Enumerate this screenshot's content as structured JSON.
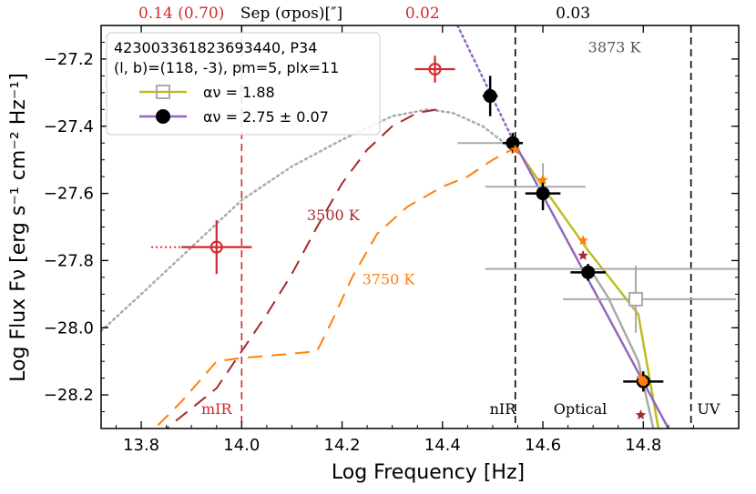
{
  "chart_data": {
    "type": "scatter",
    "xlabel": "Log Frequency [Hz]",
    "ylabel": "Log Flux Fν [erg s⁻¹ cm⁻² Hz⁻¹]",
    "xlim": [
      13.72,
      14.99
    ],
    "ylim": [
      -28.3,
      -27.1
    ],
    "x_ticks": [
      13.8,
      14.0,
      14.2,
      14.4,
      14.6,
      14.8
    ],
    "x_tick_labels": [
      "13.8",
      "14.0",
      "14.2",
      "14.4",
      "14.6",
      "14.8"
    ],
    "y_ticks": [
      -28.2,
      -28.0,
      -27.8,
      -27.6,
      -27.4,
      -27.2
    ],
    "y_tick_labels": [
      "−28.2",
      "−28.0",
      "−27.8",
      "−27.6",
      "−27.4",
      "−27.2"
    ],
    "top_axis": {
      "label": "Sep (σpos)[″]",
      "ticks": [
        {
          "x": 13.88,
          "label": "0.14 (0.70)",
          "color": "#d62728"
        },
        {
          "x": 14.36,
          "label": "0.02",
          "color": "#d62728"
        },
        {
          "x": 14.66,
          "label": "0.03",
          "color": "#000000"
        }
      ]
    },
    "legend": {
      "title_line1": "423003361823693440, P34",
      "title_line2": "(l, b)=(118, -3), pm=5, plx=11",
      "entries": [
        {
          "label": "αν = 1.88",
          "color": "#bcbd22",
          "marker_color": "#aaaaaa"
        },
        {
          "label": "αν = 2.75 ± 0.07",
          "color": "#9467bd",
          "marker_color": "#000000"
        }
      ]
    },
    "region_lines": [
      {
        "x": 14.0,
        "color": "#d62728",
        "label": "mIR"
      },
      {
        "x": 14.545,
        "color": "#000000",
        "label": "nIR"
      },
      {
        "x": 14.895,
        "color": "#000000",
        "label": "UV"
      }
    ],
    "optical_label": "Optical",
    "temperature_labels": [
      {
        "text": "3500 K",
        "x": 14.13,
        "y": -27.68,
        "color": "#a52a2a"
      },
      {
        "text": "3750 K",
        "x": 14.24,
        "y": -27.87,
        "color": "#ff7f0e"
      },
      {
        "text": "3873 K",
        "x": 14.69,
        "y": -27.18,
        "color": "#555555"
      }
    ],
    "series": [
      {
        "name": "black points",
        "points": [
          {
            "x": 14.495,
            "y": -27.31,
            "xerr": 0.015,
            "yerr": 0.06
          },
          {
            "x": 14.54,
            "y": -27.45,
            "xerr": 0.02,
            "yerr": 0.03
          },
          {
            "x": 14.6,
            "y": -27.6,
            "xerr": 0.035,
            "yerr": 0.05
          },
          {
            "x": 14.69,
            "y": -27.835,
            "xerr": 0.035,
            "yerr": 0.025
          },
          {
            "x": 14.8,
            "y": -28.16,
            "xerr": 0.04,
            "yerr": 0.03
          }
        ]
      },
      {
        "name": "gray points",
        "points": [
          {
            "x": 14.545,
            "y": -27.45,
            "xerr_lo": 0.115,
            "xerr_hi": 0.015,
            "yerr": 0.0
          },
          {
            "x": 14.6,
            "y": -27.58,
            "xerr_lo": 0.115,
            "xerr_hi": 0.085,
            "yerr": 0.07
          },
          {
            "x": 14.7,
            "y": -27.825,
            "xerr_lo": 0.215,
            "xerr_hi": 0.295,
            "yerr": 0.0
          },
          {
            "x": 14.785,
            "y": -27.915,
            "xerr_lo": 0.145,
            "xerr_hi": 0.2,
            "yerr": 0.1
          }
        ]
      },
      {
        "name": "red open points",
        "points": [
          {
            "x": 13.95,
            "y": -27.76,
            "xerr": 0.07,
            "yerr": 0.08
          },
          {
            "x": 14.385,
            "y": -27.23,
            "xerr": 0.04,
            "yerr": 0.04
          }
        ]
      },
      {
        "name": "orange stars",
        "points": [
          {
            "x": 14.545,
            "y": -27.47
          },
          {
            "x": 14.6,
            "y": -27.56
          },
          {
            "x": 14.68,
            "y": -27.74
          },
          {
            "x": 14.795,
            "y": -28.15
          }
        ]
      },
      {
        "name": "brown stars",
        "points": [
          {
            "x": 14.68,
            "y": -27.785
          },
          {
            "x": 14.795,
            "y": -28.26
          }
        ]
      }
    ],
    "curves": {
      "gray_dotted": [
        [
          13.72,
          -28.01
        ],
        [
          13.8,
          -27.9
        ],
        [
          13.9,
          -27.76
        ],
        [
          14.0,
          -27.62
        ],
        [
          14.1,
          -27.52
        ],
        [
          14.2,
          -27.44
        ],
        [
          14.3,
          -27.37
        ],
        [
          14.37,
          -27.35
        ],
        [
          14.42,
          -27.36
        ],
        [
          14.48,
          -27.4
        ],
        [
          14.55,
          -27.48
        ]
      ],
      "brown_dashed": [
        [
          13.72,
          -28.45
        ],
        [
          13.85,
          -28.3
        ],
        [
          13.95,
          -28.18
        ],
        [
          14.0,
          -28.07
        ],
        [
          14.05,
          -27.96
        ],
        [
          14.1,
          -27.84
        ],
        [
          14.15,
          -27.7
        ],
        [
          14.2,
          -27.57
        ],
        [
          14.25,
          -27.47
        ],
        [
          14.3,
          -27.4
        ],
        [
          14.35,
          -27.36
        ],
        [
          14.39,
          -27.35
        ]
      ],
      "orange_dashed": [
        [
          13.8,
          -28.34
        ],
        [
          13.88,
          -28.22
        ],
        [
          13.95,
          -28.1
        ],
        [
          14.0,
          -28.09
        ],
        [
          14.08,
          -28.08
        ],
        [
          14.15,
          -28.07
        ],
        [
          14.18,
          -27.98
        ],
        [
          14.22,
          -27.85
        ],
        [
          14.27,
          -27.72
        ],
        [
          14.33,
          -27.64
        ],
        [
          14.4,
          -27.58
        ],
        [
          14.45,
          -27.55
        ],
        [
          14.5,
          -27.5
        ],
        [
          14.55,
          -27.46
        ]
      ],
      "red_dotted_h": [
        [
          13.82,
          -27.76
        ],
        [
          13.88,
          -27.76
        ]
      ],
      "purple_line": [
        [
          14.54,
          -27.44
        ],
        [
          14.85,
          -28.3
        ]
      ],
      "purple_dotted": [
        [
          14.43,
          -27.1
        ],
        [
          14.54,
          -27.44
        ]
      ],
      "olive_line": [
        [
          14.54,
          -27.45
        ],
        [
          14.6,
          -27.58
        ],
        [
          14.69,
          -27.77
        ],
        [
          14.79,
          -27.96
        ],
        [
          14.83,
          -28.3
        ]
      ],
      "gray_solid": [
        [
          14.7,
          -27.84
        ],
        [
          14.73,
          -27.91
        ],
        [
          14.79,
          -28.1
        ],
        [
          14.82,
          -28.3
        ]
      ]
    }
  }
}
